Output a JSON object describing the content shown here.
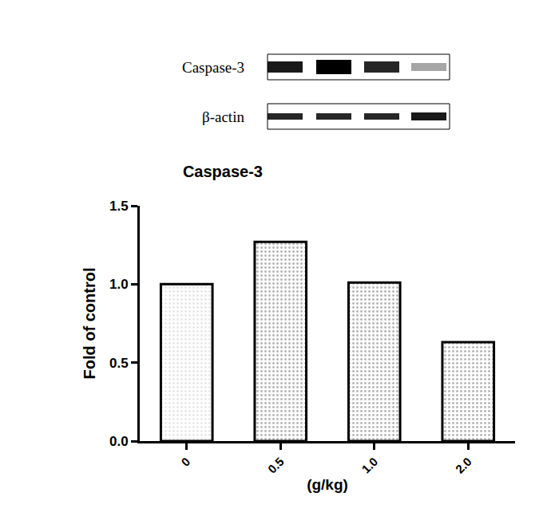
{
  "chart_data": {
    "type": "bar",
    "title": "Caspase-3",
    "annotations": [
      "Caspase-3",
      "β-actin"
    ],
    "x_label": "(g/kg)",
    "y_label": "Fold of control",
    "categories": [
      "0",
      "0.5",
      "1.0",
      "2.0"
    ],
    "values": [
      1.0,
      1.27,
      1.01,
      0.63
    ],
    "colors": [
      "#e6e6e6",
      "#b3b3b3",
      "#b3b3b3",
      "#b3b3b3"
    ],
    "ylim": [
      0,
      1.5
    ],
    "yticks": [
      {
        "value": 0,
        "label": "0.0"
      },
      {
        "value": 0.5,
        "label": "0.5"
      },
      {
        "value": 1,
        "label": "1.0"
      },
      {
        "value": 1.5,
        "label": "1.5"
      }
    ],
    "grid": false
  }
}
